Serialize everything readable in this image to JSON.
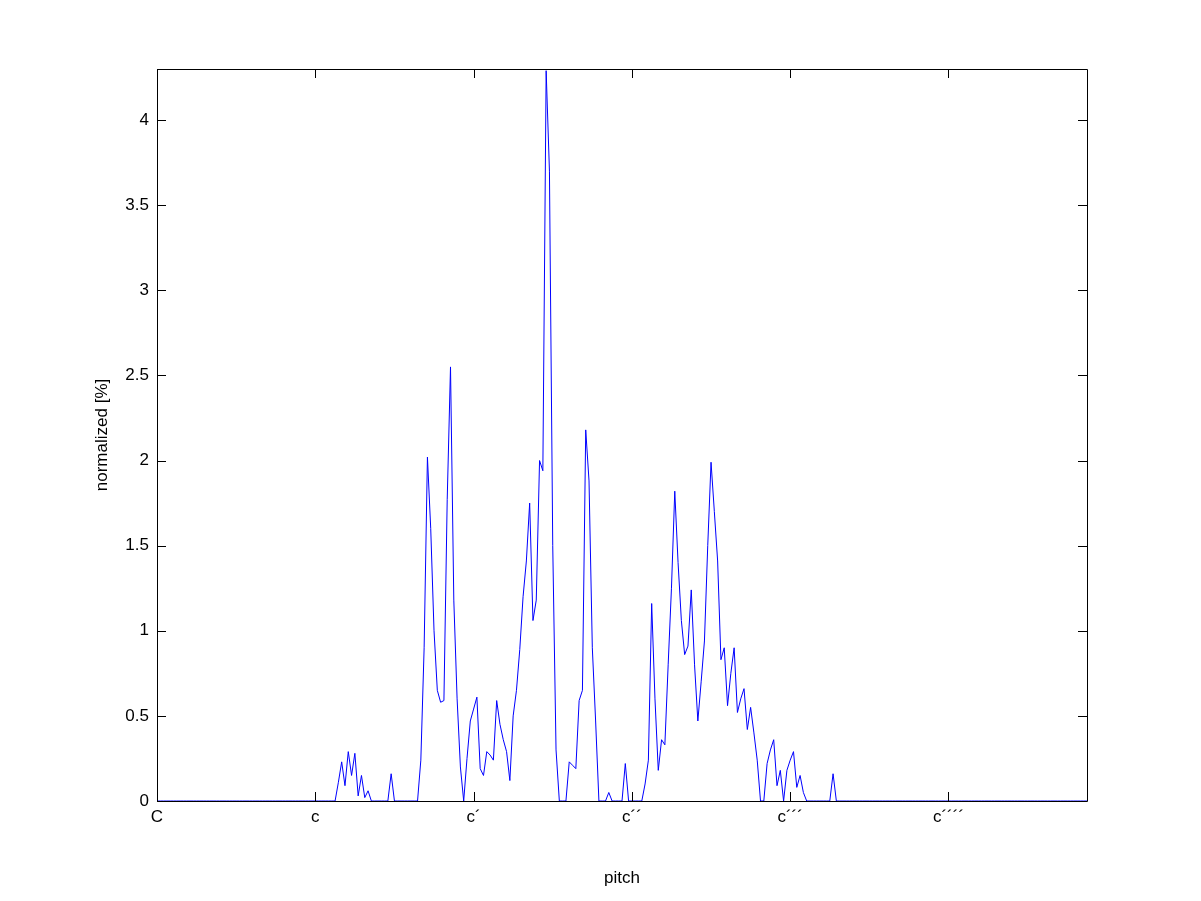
{
  "chart_data": {
    "type": "line",
    "xlabel": "pitch",
    "ylabel": "normalized [%]",
    "categories": [
      "C",
      null,
      null,
      null,
      null,
      null,
      null,
      null,
      null,
      null,
      null,
      null,
      null,
      null,
      null,
      null,
      null,
      null,
      null,
      null,
      null,
      null,
      null,
      null,
      null,
      null,
      null,
      null,
      null,
      null,
      null,
      null,
      null,
      null,
      null,
      null,
      null,
      null,
      null,
      null,
      null,
      null,
      null,
      null,
      null,
      null,
      null,
      null,
      "c",
      null,
      null,
      null,
      null,
      null,
      null,
      null,
      null,
      null,
      null,
      null,
      null,
      null,
      null,
      null,
      null,
      null,
      null,
      null,
      null,
      null,
      null,
      null,
      null,
      null,
      null,
      null,
      null,
      null,
      null,
      null,
      null,
      null,
      null,
      null,
      null,
      null,
      null,
      null,
      null,
      null,
      null,
      null,
      null,
      null,
      null,
      null,
      "c´",
      null,
      null,
      null,
      null,
      null,
      null,
      null,
      null,
      null,
      null,
      null,
      null,
      null,
      null,
      null,
      null,
      null,
      null,
      null,
      null,
      null,
      null,
      null,
      null,
      null,
      null,
      null,
      null,
      null,
      null,
      null,
      null,
      null,
      null,
      null,
      null,
      null,
      null,
      null,
      null,
      null,
      null,
      null,
      null,
      null,
      null,
      null,
      "c´´",
      null,
      null,
      null,
      null,
      null,
      null,
      null,
      null,
      null,
      null,
      null,
      null,
      null,
      null,
      null,
      null,
      null,
      null,
      null,
      null,
      null,
      null,
      null,
      null,
      null,
      null,
      null,
      null,
      null,
      null,
      null,
      null,
      null,
      null,
      null,
      null,
      null,
      null,
      null,
      null,
      null,
      null,
      null,
      null,
      null,
      null,
      null,
      "c´´´",
      null,
      null,
      null,
      null,
      null,
      null,
      null,
      null,
      null,
      null,
      null,
      null,
      null,
      null,
      null,
      null,
      null,
      null,
      null,
      null,
      null,
      null,
      null,
      null,
      null,
      null,
      null,
      null,
      null,
      null,
      null,
      null,
      null,
      null,
      null,
      null,
      null,
      null,
      null,
      null,
      null,
      null,
      null,
      null,
      null,
      null,
      null,
      "c´´´´",
      null,
      null,
      null,
      null,
      null,
      null,
      null,
      null,
      null,
      null,
      null,
      null,
      null,
      null,
      null,
      null,
      null,
      null,
      null,
      null,
      null,
      null,
      null,
      null,
      null,
      null,
      null,
      null,
      null,
      null,
      null,
      null,
      null,
      null,
      null,
      null,
      null,
      null,
      null,
      null,
      null,
      null
    ],
    "ylim": [
      0,
      4.3
    ],
    "yticks": [
      0,
      0.5,
      1,
      1.5,
      2,
      2.5,
      3,
      3.5,
      4
    ],
    "grid": false,
    "marker": "none",
    "line_style": "solid",
    "series": [
      {
        "color": "#0000ff",
        "values": [
          0,
          0,
          0,
          0,
          0,
          0,
          0,
          0,
          0,
          0,
          0,
          0,
          0,
          0,
          0,
          0,
          0,
          0,
          0,
          0,
          0,
          0,
          0,
          0,
          0,
          0,
          0,
          0,
          0,
          0,
          0,
          0,
          0,
          0,
          0,
          0,
          0,
          0,
          0,
          0,
          0,
          0,
          0,
          0,
          0,
          0,
          0,
          0,
          0,
          0,
          0,
          0,
          0,
          0,
          0,
          0.11,
          0.23,
          0.09,
          0.29,
          0.15,
          0.28,
          0.03,
          0.15,
          0.02,
          0.06,
          0,
          0,
          0,
          0,
          0,
          0,
          0.16,
          0,
          0,
          0,
          0,
          0,
          0,
          0,
          0,
          0.24,
          0.9,
          2.02,
          1.6,
          1.0,
          0.65,
          0.58,
          0.59,
          1.77,
          2.55,
          1.18,
          0.6,
          0.2,
          0,
          0.25,
          0.47,
          0.54,
          0.61,
          0.19,
          0.15,
          0.29,
          0.27,
          0.24,
          0.59,
          0.45,
          0.36,
          0.29,
          0.12,
          0.5,
          0.65,
          0.89,
          1.2,
          1.41,
          1.75,
          1.06,
          1.18,
          2.0,
          1.94,
          4.29,
          3.7,
          1.5,
          0.3,
          0,
          0,
          0,
          0.23,
          0.21,
          0.19,
          0.59,
          0.65,
          2.18,
          1.88,
          0.9,
          0.47,
          0,
          0,
          0,
          0.05,
          0,
          0,
          0,
          0,
          0.22,
          0,
          0,
          0,
          0,
          0,
          0.1,
          0.24,
          1.16,
          0.6,
          0.18,
          0.36,
          0.33,
          0.8,
          1.25,
          1.82,
          1.4,
          1.06,
          0.86,
          0.91,
          1.24,
          0.8,
          0.47,
          0.7,
          0.94,
          1.5,
          1.99,
          1.7,
          1.41,
          0.83,
          0.9,
          0.56,
          0.75,
          0.9,
          0.52,
          0.6,
          0.66,
          0.42,
          0.55,
          0.4,
          0.24,
          0,
          0,
          0.22,
          0.3,
          0.36,
          0.09,
          0.18,
          0,
          0.18,
          0.24,
          0.29,
          0.08,
          0.15,
          0.05,
          0,
          0,
          0,
          0,
          0,
          0,
          0,
          0,
          0.16,
          0,
          0,
          0,
          0,
          0,
          0,
          0,
          0,
          0,
          0,
          0,
          0,
          0,
          0,
          0,
          0,
          0,
          0,
          0,
          0,
          0,
          0,
          0,
          0,
          0,
          0,
          0,
          0,
          0,
          0,
          0,
          0,
          0,
          0,
          0,
          0,
          0,
          0,
          0,
          0,
          0,
          0,
          0,
          0,
          0,
          0,
          0,
          0,
          0,
          0,
          0,
          0,
          0,
          0,
          0,
          0,
          0,
          0,
          0,
          0,
          0,
          0,
          0,
          0,
          0,
          0,
          0,
          0,
          0,
          0,
          0,
          0,
          0,
          0,
          0,
          0,
          0
        ]
      }
    ]
  }
}
